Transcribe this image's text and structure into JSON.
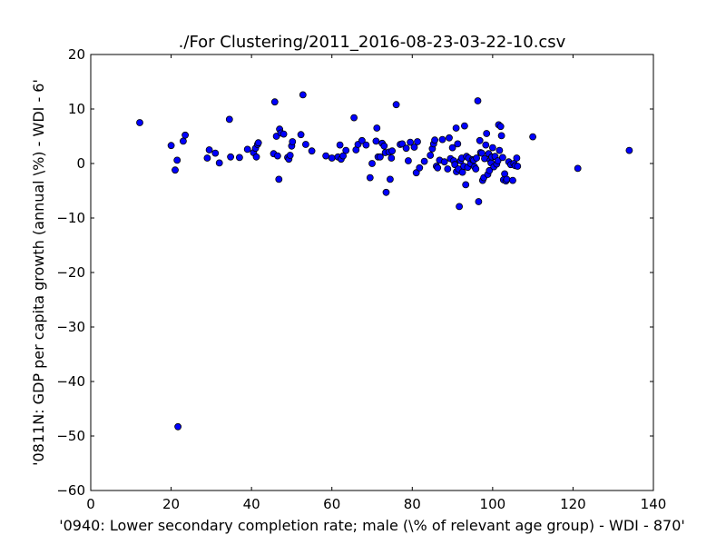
{
  "chart_data": {
    "type": "scatter",
    "title": "./For Clustering/2011_2016-08-23-03-22-10.csv",
    "xlabel": "'0940: Lower secondary completion rate; male  (\\% of relevant age group) - WDI - 870'",
    "ylabel": "'0811N: GDP per capita growth  (annual \\%) - WDI - 6'",
    "xlim": [
      0,
      140
    ],
    "ylim": [
      -60,
      20
    ],
    "xticks": [
      0,
      20,
      40,
      60,
      80,
      100,
      120,
      140
    ],
    "yticks": [
      20,
      10,
      0,
      -10,
      -20,
      -30,
      -40,
      -50,
      -60
    ],
    "grid": false,
    "marker_color": "#0000ff",
    "marker_edge": "#000000",
    "points": [
      [
        12.2,
        7.5
      ],
      [
        20.0,
        3.3
      ],
      [
        21.0,
        -1.2
      ],
      [
        21.5,
        0.6
      ],
      [
        21.7,
        -48.3
      ],
      [
        23.0,
        4.1
      ],
      [
        23.5,
        5.2
      ],
      [
        29.0,
        1.0
      ],
      [
        29.5,
        2.5
      ],
      [
        31.0,
        1.9
      ],
      [
        32.0,
        0.1
      ],
      [
        34.5,
        8.1
      ],
      [
        34.8,
        1.2
      ],
      [
        37.0,
        1.1
      ],
      [
        39.0,
        2.6
      ],
      [
        40.5,
        2.0
      ],
      [
        41.0,
        2.8
      ],
      [
        41.2,
        1.2
      ],
      [
        41.5,
        3.5
      ],
      [
        41.7,
        3.8
      ],
      [
        45.5,
        1.8
      ],
      [
        45.8,
        11.3
      ],
      [
        46.2,
        5.0
      ],
      [
        46.5,
        1.4
      ],
      [
        46.8,
        -2.9
      ],
      [
        47.0,
        6.3
      ],
      [
        47.3,
        5.6
      ],
      [
        48.0,
        5.4
      ],
      [
        49.0,
        1.1
      ],
      [
        49.3,
        0.8
      ],
      [
        49.6,
        1.5
      ],
      [
        50.0,
        3.2
      ],
      [
        50.2,
        4.0
      ],
      [
        52.3,
        5.3
      ],
      [
        52.8,
        12.6
      ],
      [
        53.5,
        3.5
      ],
      [
        55.0,
        2.3
      ],
      [
        58.5,
        1.4
      ],
      [
        60.0,
        1.0
      ],
      [
        61.5,
        1.2
      ],
      [
        62.0,
        3.4
      ],
      [
        62.3,
        0.8
      ],
      [
        62.8,
        1.4
      ],
      [
        63.5,
        2.4
      ],
      [
        65.5,
        8.4
      ],
      [
        66.0,
        2.5
      ],
      [
        66.5,
        3.5
      ],
      [
        67.5,
        4.2
      ],
      [
        68.5,
        3.4
      ],
      [
        69.5,
        -2.6
      ],
      [
        70.0,
        0.0
      ],
      [
        71.0,
        4.1
      ],
      [
        71.2,
        6.5
      ],
      [
        71.5,
        1.2
      ],
      [
        72.0,
        1.2
      ],
      [
        72.5,
        3.7
      ],
      [
        73.0,
        3.2
      ],
      [
        73.3,
        2.0
      ],
      [
        73.5,
        -5.3
      ],
      [
        74.2,
        2.1
      ],
      [
        74.5,
        -2.9
      ],
      [
        74.8,
        1.0
      ],
      [
        75.0,
        2.3
      ],
      [
        76.0,
        10.8
      ],
      [
        77.0,
        3.5
      ],
      [
        77.5,
        3.6
      ],
      [
        78.5,
        2.8
      ],
      [
        79.0,
        0.5
      ],
      [
        79.5,
        3.9
      ],
      [
        80.5,
        3.0
      ],
      [
        81.0,
        -1.7
      ],
      [
        81.3,
        4.0
      ],
      [
        81.8,
        -0.8
      ],
      [
        83.0,
        0.4
      ],
      [
        84.5,
        1.5
      ],
      [
        85.0,
        2.7
      ],
      [
        85.3,
        3.6
      ],
      [
        85.6,
        4.3
      ],
      [
        86.0,
        -0.5
      ],
      [
        86.3,
        -0.8
      ],
      [
        86.8,
        0.6
      ],
      [
        87.5,
        4.4
      ],
      [
        88.0,
        0.3
      ],
      [
        88.8,
        -1.0
      ],
      [
        89.2,
        4.7
      ],
      [
        89.5,
        0.9
      ],
      [
        90.0,
        2.9
      ],
      [
        90.3,
        0.5
      ],
      [
        90.6,
        -0.2
      ],
      [
        90.9,
        6.5
      ],
      [
        91.0,
        -1.5
      ],
      [
        91.3,
        3.6
      ],
      [
        91.5,
        -1.0
      ],
      [
        91.7,
        -7.9
      ],
      [
        92.0,
        0.5
      ],
      [
        92.3,
        1.0
      ],
      [
        92.5,
        -1.6
      ],
      [
        92.8,
        -0.5
      ],
      [
        93.0,
        6.9
      ],
      [
        93.3,
        -3.9
      ],
      [
        93.5,
        1.3
      ],
      [
        93.8,
        -0.7
      ],
      [
        94.0,
        1.0
      ],
      [
        94.5,
        0.0
      ],
      [
        95.0,
        0.7
      ],
      [
        95.3,
        0.6
      ],
      [
        95.5,
        -0.6
      ],
      [
        95.8,
        -1.0
      ],
      [
        96.0,
        1.0
      ],
      [
        96.3,
        11.5
      ],
      [
        96.5,
        -7.0
      ],
      [
        96.8,
        4.2
      ],
      [
        97.0,
        2.0
      ],
      [
        97.3,
        1.9
      ],
      [
        97.5,
        -3.1
      ],
      [
        97.8,
        -2.6
      ],
      [
        98.0,
        0.9
      ],
      [
        98.3,
        3.4
      ],
      [
        98.5,
        5.5
      ],
      [
        98.8,
        -2.0
      ],
      [
        99.0,
        1.8
      ],
      [
        99.2,
        -1.3
      ],
      [
        99.4,
        0.6
      ],
      [
        99.6,
        0.1
      ],
      [
        99.8,
        1.2
      ],
      [
        100.0,
        2.9
      ],
      [
        100.3,
        -0.6
      ],
      [
        100.6,
        1.3
      ],
      [
        101.0,
        -0.1
      ],
      [
        101.3,
        0.5
      ],
      [
        101.5,
        7.1
      ],
      [
        101.7,
        2.4
      ],
      [
        102.0,
        6.8
      ],
      [
        102.2,
        5.1
      ],
      [
        102.5,
        1.1
      ],
      [
        102.7,
        -3.0
      ],
      [
        103.0,
        -1.9
      ],
      [
        103.3,
        -3.2
      ],
      [
        103.5,
        -2.9
      ],
      [
        104.0,
        0.3
      ],
      [
        104.5,
        -0.2
      ],
      [
        105.0,
        -3.1
      ],
      [
        105.3,
        0.0
      ],
      [
        105.6,
        -0.4
      ],
      [
        106.0,
        1.0
      ],
      [
        106.2,
        -0.5
      ],
      [
        110.0,
        4.9
      ],
      [
        121.2,
        -0.9
      ],
      [
        134.0,
        2.4
      ]
    ]
  }
}
